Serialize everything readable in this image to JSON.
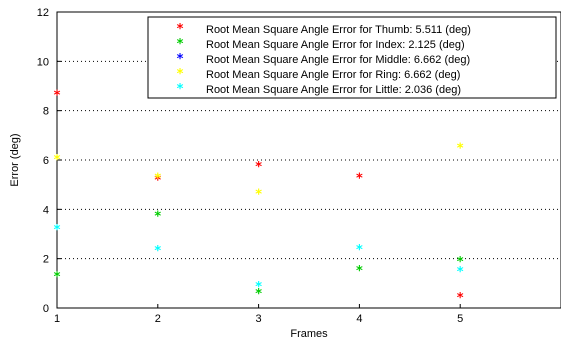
{
  "chart_data": {
    "type": "scatter",
    "title": "",
    "xlabel": "Frames",
    "ylabel": "Error (deg)",
    "xlim": [
      1,
      6
    ],
    "ylim": [
      0,
      12
    ],
    "xticks": [
      1,
      2,
      3,
      4,
      5
    ],
    "yticks": [
      0,
      2,
      4,
      6,
      8,
      10,
      12
    ],
    "grid": "horizontal dotted",
    "legend_position": "top-right",
    "marker": "*",
    "series": [
      {
        "name": "Root Mean Square Angle Error for Thumb: 5.511 (deg)",
        "color": "#ff0000",
        "points": [
          [
            1,
            8.65
          ],
          [
            2,
            5.2
          ],
          [
            3,
            5.75
          ],
          [
            4,
            5.3
          ],
          [
            5,
            0.45
          ]
        ]
      },
      {
        "name": "Root Mean Square Angle Error for Index: 2.125 (deg)",
        "color": "#00cc00",
        "points": [
          [
            1,
            1.3
          ],
          [
            2,
            3.75
          ],
          [
            3,
            0.6
          ],
          [
            4,
            1.55
          ],
          [
            5,
            1.9
          ]
        ]
      },
      {
        "name": "Root Mean Square Angle Error for Middle: 6.662 (deg)",
        "color": "#0000ff",
        "points": []
      },
      {
        "name": "Root Mean Square Angle Error for Ring: 6.662 (deg)",
        "color": "#ffff00",
        "points": [
          [
            1,
            6.05
          ],
          [
            2,
            5.3
          ],
          [
            3,
            4.65
          ],
          [
            5,
            6.5
          ]
        ]
      },
      {
        "name": "Root Mean Square Angle Error for Little: 2.036 (deg)",
        "color": "#00ffff",
        "points": [
          [
            1,
            3.2
          ],
          [
            2,
            2.35
          ],
          [
            3,
            0.9
          ],
          [
            4,
            2.4
          ],
          [
            5,
            1.5
          ]
        ]
      }
    ]
  }
}
